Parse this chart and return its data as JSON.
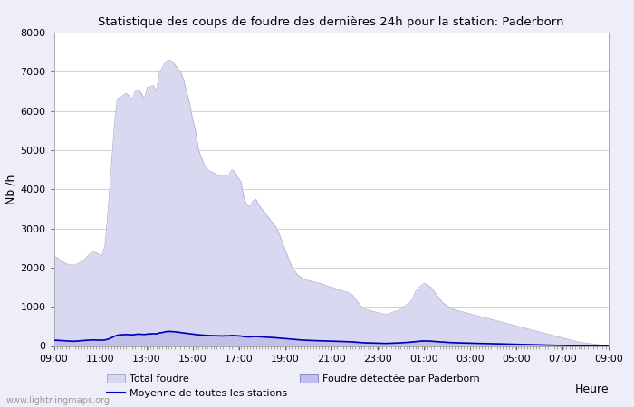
{
  "title": "Statistique des coups de foudre des dernières 24h pour la station: Paderborn",
  "xlabel": "Heure",
  "ylabel": "Nb /h",
  "x_ticks": [
    "09:00",
    "11:00",
    "13:00",
    "15:00",
    "17:00",
    "19:00",
    "21:00",
    "23:00",
    "01:00",
    "03:00",
    "05:00",
    "07:00",
    "09:00"
  ],
  "ylim": [
    0,
    8000
  ],
  "yticks": [
    0,
    1000,
    2000,
    3000,
    4000,
    5000,
    6000,
    7000,
    8000
  ],
  "bg_color": "#eeeef8",
  "plot_bg_color": "#ffffff",
  "total_foudre_color": "#d8d8f0",
  "total_foudre_edge": "#d8d8f0",
  "paderborn_color": "#c0c0e8",
  "paderborn_edge": "#c0c0e8",
  "moyenne_color": "#0000bb",
  "watermark": "www.lightningmaps.org",
  "total_foudre": [
    2280,
    2260,
    2200,
    2150,
    2100,
    2080,
    2060,
    2080,
    2100,
    2150,
    2200,
    2280,
    2350,
    2400,
    2380,
    2340,
    2300,
    2600,
    3500,
    4500,
    5600,
    6300,
    6350,
    6400,
    6450,
    6380,
    6300,
    6500,
    6550,
    6450,
    6300,
    6600,
    6620,
    6650,
    6500,
    7000,
    7100,
    7250,
    7300,
    7280,
    7200,
    7100,
    7000,
    6800,
    6500,
    6200,
    5800,
    5500,
    5000,
    4800,
    4600,
    4500,
    4450,
    4420,
    4380,
    4350,
    4320,
    4380,
    4350,
    4500,
    4450,
    4300,
    4200,
    3800,
    3600,
    3550,
    3700,
    3750,
    3600,
    3500,
    3400,
    3300,
    3200,
    3100,
    3000,
    2800,
    2600,
    2400,
    2200,
    2000,
    1900,
    1800,
    1750,
    1700,
    1680,
    1660,
    1640,
    1620,
    1600,
    1580,
    1550,
    1520,
    1500,
    1480,
    1450,
    1420,
    1400,
    1380,
    1350,
    1300,
    1200,
    1100,
    1000,
    950,
    920,
    900,
    880,
    860,
    840,
    820,
    800,
    820,
    850,
    880,
    900,
    950,
    1000,
    1050,
    1100,
    1200,
    1400,
    1500,
    1550,
    1600,
    1550,
    1500,
    1400,
    1300,
    1200,
    1100,
    1050,
    1000,
    960,
    920,
    900,
    880,
    860,
    840,
    820,
    800,
    780,
    760,
    740,
    720,
    700,
    680,
    660,
    640,
    620,
    600,
    580,
    560,
    540,
    520,
    500,
    480,
    460,
    440,
    420,
    400,
    380,
    360,
    340,
    320,
    300,
    280,
    260,
    240,
    220,
    200,
    180,
    160,
    140,
    120,
    100,
    90,
    80,
    70,
    60,
    50,
    40,
    30,
    20,
    10,
    5
  ],
  "paderborn": [
    150,
    150,
    145,
    140,
    135,
    130,
    125,
    125,
    130,
    140,
    145,
    150,
    155,
    160,
    158,
    155,
    152,
    160,
    180,
    210,
    250,
    280,
    290,
    295,
    300,
    295,
    290,
    300,
    310,
    305,
    300,
    310,
    315,
    320,
    315,
    340,
    350,
    370,
    380,
    375,
    370,
    360,
    350,
    340,
    330,
    320,
    310,
    300,
    290,
    285,
    280,
    275,
    272,
    270,
    268,
    265,
    262,
    268,
    265,
    275,
    272,
    265,
    260,
    245,
    240,
    238,
    245,
    248,
    242,
    238,
    232,
    228,
    222,
    218,
    212,
    205,
    198,
    192,
    185,
    178,
    170,
    162,
    157,
    152,
    148,
    145,
    142,
    140,
    138,
    135,
    132,
    130,
    128,
    126,
    123,
    120,
    118,
    115,
    112,
    108,
    102,
    96,
    90,
    85,
    82,
    80,
    78,
    76,
    74,
    72,
    70,
    72,
    75,
    78,
    80,
    85,
    90,
    95,
    100,
    108,
    118,
    125,
    130,
    132,
    130,
    127,
    122,
    116,
    110,
    104,
    98,
    94,
    90,
    87,
    84,
    82,
    80,
    78,
    76,
    74,
    72,
    70,
    68,
    66,
    64,
    62,
    60,
    58,
    56,
    54,
    52,
    50,
    48,
    46,
    44,
    42,
    40,
    38,
    36,
    34,
    32,
    30,
    28,
    26,
    24,
    22,
    20,
    18,
    16,
    14,
    12,
    10,
    9,
    8,
    7,
    6,
    5,
    5,
    4,
    4,
    3,
    3,
    2,
    2,
    1
  ],
  "moyenne": [
    145,
    145,
    140,
    136,
    131,
    126,
    121,
    121,
    126,
    136,
    140,
    145,
    150,
    155,
    153,
    150,
    147,
    155,
    175,
    205,
    244,
    273,
    283,
    288,
    293,
    288,
    283,
    293,
    303,
    298,
    293,
    303,
    308,
    313,
    308,
    333,
    343,
    362,
    372,
    368,
    363,
    353,
    343,
    333,
    323,
    313,
    303,
    293,
    283,
    278,
    273,
    268,
    265,
    263,
    261,
    258,
    255,
    261,
    258,
    268,
    265,
    258,
    254,
    239,
    235,
    232,
    239,
    242,
    236,
    232,
    226,
    222,
    216,
    212,
    207,
    200,
    193,
    187,
    180,
    173,
    165,
    158,
    153,
    148,
    144,
    141,
    138,
    136,
    134,
    131,
    128,
    126,
    124,
    122,
    119,
    116,
    114,
    111,
    108,
    104,
    98,
    92,
    86,
    81,
    78,
    76,
    74,
    72,
    70,
    68,
    66,
    68,
    71,
    74,
    76,
    81,
    86,
    91,
    96,
    104,
    114,
    121,
    126,
    128,
    126,
    123,
    118,
    112,
    106,
    100,
    94,
    90,
    86,
    83,
    80,
    78,
    76,
    74,
    72,
    70,
    68,
    66,
    64,
    62,
    60,
    58,
    56,
    54,
    52,
    50,
    48,
    46,
    44,
    42,
    40,
    38,
    36,
    34,
    32,
    30,
    28,
    26,
    24,
    22,
    20,
    18,
    16,
    14,
    12,
    10,
    8,
    6,
    5,
    4,
    3,
    2,
    2,
    2,
    1,
    1,
    1,
    1,
    0,
    0,
    0
  ],
  "n_points": 185
}
